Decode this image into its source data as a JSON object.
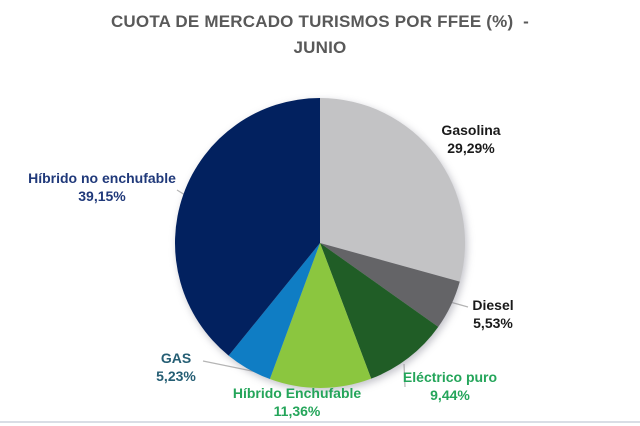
{
  "header": {
    "title_line1": "CUOTA DE MERCADO TURISMOS POR FFEE (%)  -",
    "title_line2": "JUNIO",
    "title_color": "#595959"
  },
  "chart_data": {
    "type": "pie",
    "title": "CUOTA DE MERCADO TURISMOS POR FFEE (%) - JUNIO",
    "start_angle_deg": 0,
    "direction": "clockwise",
    "legend_position": "none",
    "labels_style": "outside-with-leader-lines",
    "units": "%",
    "segments": [
      {
        "label": "Gasolina",
        "value": 29.29,
        "value_label": "29,29%",
        "color": "#C3C3C5",
        "label_color": "#1A1A1A"
      },
      {
        "label": "Diesel",
        "value": 5.53,
        "value_label": "5,53%",
        "color": "#646467",
        "label_color": "#1A1A1A"
      },
      {
        "label": "Eléctrico puro",
        "value": 9.44,
        "value_label": "9,44%",
        "color": "#205D26",
        "label_color": "#24A55A"
      },
      {
        "label": "Híbrido Enchufable",
        "value": 11.36,
        "value_label": "11,36%",
        "color": "#8BC63F",
        "label_color": "#24A55A"
      },
      {
        "label": "GAS",
        "value": 5.23,
        "value_label": "5,23%",
        "color": "#0F7DC4",
        "label_color": "#255E74"
      },
      {
        "label": "Híbrido no enchufable",
        "value": 39.15,
        "value_label": "39,15%",
        "color": "#02215F",
        "label_color": "#20397A"
      }
    ]
  }
}
